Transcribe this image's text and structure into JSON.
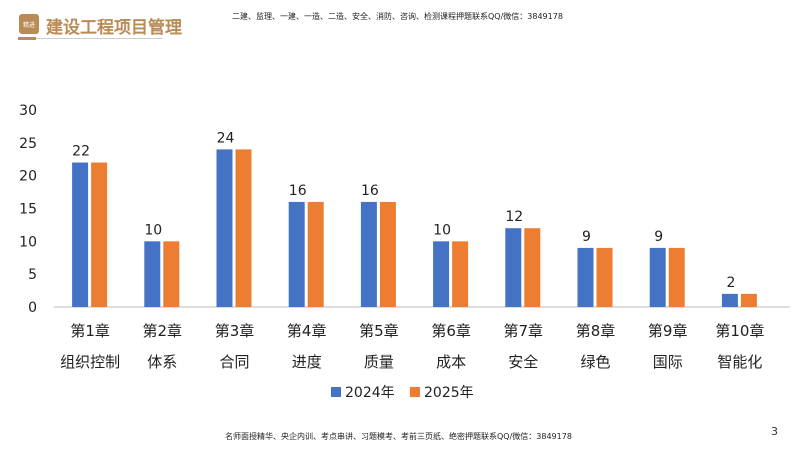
{
  "header": {
    "logo_text": "精进",
    "title": "建设工程项目管理",
    "note": "二建、监理、一建、一造、二造、安全、消防、咨询、检测课程押题联系QQ/微信：3849178"
  },
  "footer": {
    "note": "名师面授精华、央企内训、考点串讲、习题模考、考前三页纸、绝密押题联系QQ/微信：3849178",
    "page": "3"
  },
  "chart_data": {
    "type": "bar",
    "categories": [
      [
        "第1章",
        "组织控制"
      ],
      [
        "第2章",
        "体系"
      ],
      [
        "第3章",
        "合同"
      ],
      [
        "第4章",
        "进度"
      ],
      [
        "第5章",
        "质量"
      ],
      [
        "第6章",
        "成本"
      ],
      [
        "第7章",
        "安全"
      ],
      [
        "第8章",
        "绿色"
      ],
      [
        "第9章",
        "国际"
      ],
      [
        "第10章",
        "智能化"
      ]
    ],
    "series": [
      {
        "name": "2024年",
        "color": "#4472c4",
        "values": [
          22,
          10,
          24,
          16,
          16,
          10,
          12,
          9,
          9,
          2
        ]
      },
      {
        "name": "2025年",
        "color": "#ed7d31",
        "values": [
          22,
          10,
          24,
          16,
          16,
          10,
          12,
          9,
          9,
          2
        ]
      }
    ],
    "data_labels": [
      22,
      10,
      24,
      16,
      16,
      10,
      12,
      9,
      9,
      2
    ],
    "yticks": [
      0,
      5,
      10,
      15,
      20,
      25,
      30
    ],
    "ylim": [
      0,
      30
    ],
    "grid": false,
    "legend": "bottom"
  }
}
